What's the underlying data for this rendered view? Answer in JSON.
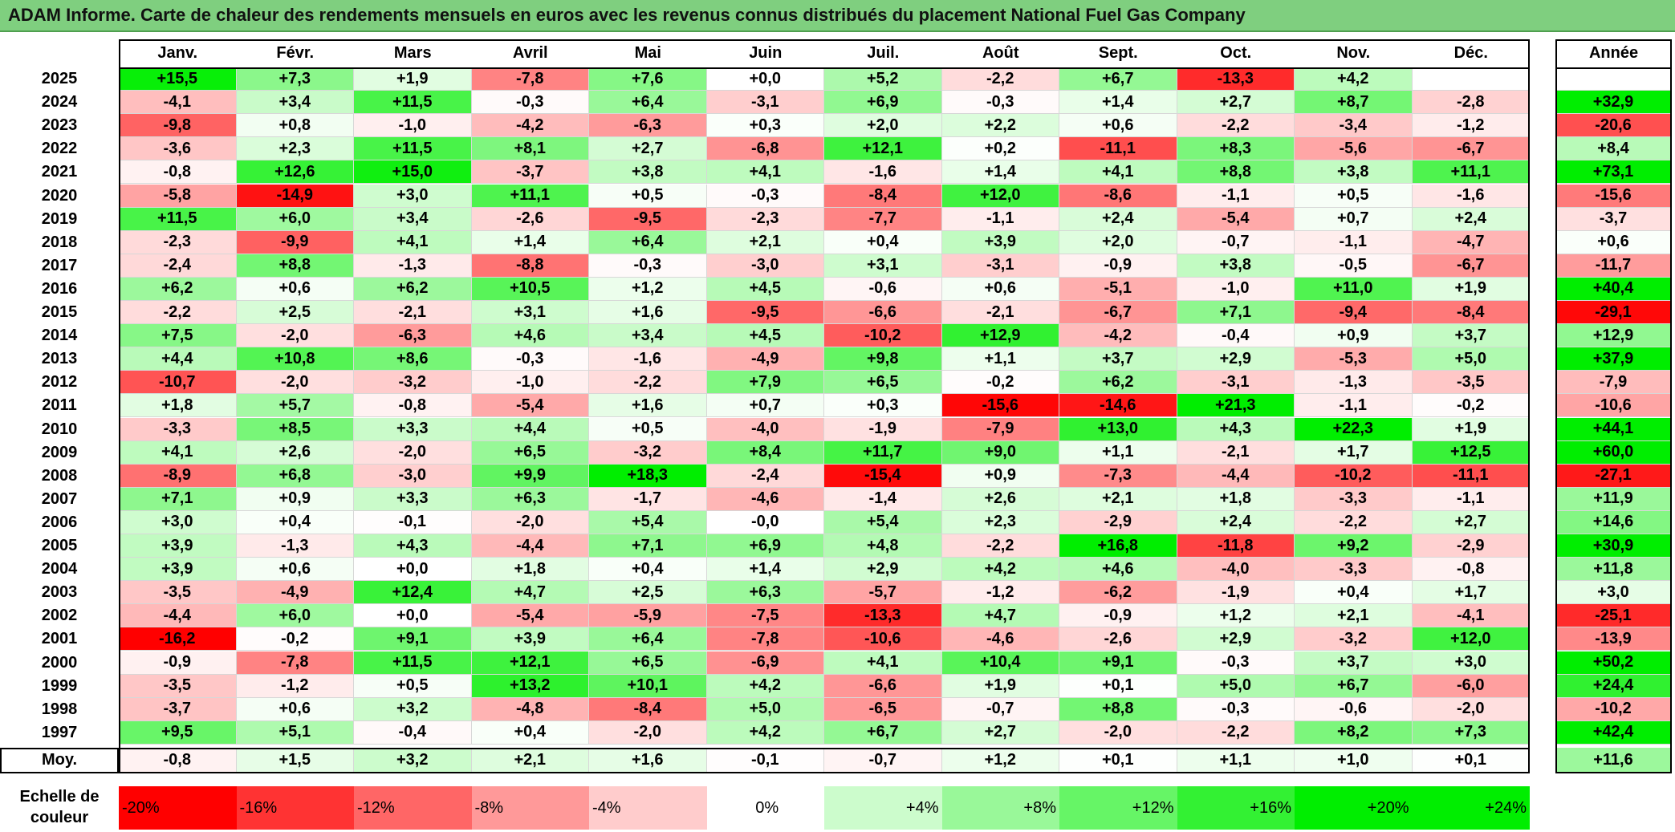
{
  "title": "ADAM Informe. Carte de chaleur des rendements mensuels en euros avec les revenus connus distribués du placement National Fuel Gas Company",
  "chart_data": {
    "type": "heatmap",
    "months": [
      "Janv.",
      "Févr.",
      "Mars",
      "Avril",
      "Mai",
      "Juin",
      "Juil.",
      "Août",
      "Sept.",
      "Oct.",
      "Nov.",
      "Déc."
    ],
    "year_header": "Année",
    "average_label": "Moy.",
    "rows": [
      {
        "year": "2025",
        "values": [
          "+15,5",
          "+7,3",
          "+1,9",
          "-7,8",
          "+7,6",
          "+0,0",
          "+5,2",
          "-2,2",
          "+6,7",
          "-13,3",
          "+4,2",
          ""
        ],
        "annual": ""
      },
      {
        "year": "2024",
        "values": [
          "-4,1",
          "+3,4",
          "+11,5",
          "-0,3",
          "+6,4",
          "-3,1",
          "+6,9",
          "-0,3",
          "+1,4",
          "+2,7",
          "+8,7",
          "-2,8"
        ],
        "annual": "+32,9"
      },
      {
        "year": "2023",
        "values": [
          "-9,8",
          "+0,8",
          "-1,0",
          "-4,2",
          "-6,3",
          "+0,3",
          "+2,0",
          "+2,2",
          "+0,6",
          "-2,2",
          "-3,4",
          "-1,2"
        ],
        "annual": "-20,6"
      },
      {
        "year": "2022",
        "values": [
          "-3,6",
          "+2,3",
          "+11,5",
          "+8,1",
          "+2,7",
          "-6,8",
          "+12,1",
          "+0,2",
          "-11,1",
          "+8,3",
          "-5,6",
          "-6,7"
        ],
        "annual": "+8,4"
      },
      {
        "year": "2021",
        "values": [
          "-0,8",
          "+12,6",
          "+15,0",
          "-3,7",
          "+3,8",
          "+4,1",
          "-1,6",
          "+1,4",
          "+4,1",
          "+8,8",
          "+3,8",
          "+11,1"
        ],
        "annual": "+73,1"
      },
      {
        "year": "2020",
        "values": [
          "-5,8",
          "-14,9",
          "+3,0",
          "+11,1",
          "+0,5",
          "-0,3",
          "-8,4",
          "+12,0",
          "-8,6",
          "-1,1",
          "+0,5",
          "-1,6"
        ],
        "annual": "-15,6"
      },
      {
        "year": "2019",
        "values": [
          "+11,5",
          "+6,0",
          "+3,4",
          "-2,6",
          "-9,5",
          "-2,3",
          "-7,7",
          "-1,1",
          "+2,4",
          "-5,4",
          "+0,7",
          "+2,4"
        ],
        "annual": "-3,7"
      },
      {
        "year": "2018",
        "values": [
          "-2,3",
          "-9,9",
          "+4,1",
          "+1,4",
          "+6,4",
          "+2,1",
          "+0,4",
          "+3,9",
          "+2,0",
          "-0,7",
          "-1,1",
          "-4,7"
        ],
        "annual": "+0,6"
      },
      {
        "year": "2017",
        "values": [
          "-2,4",
          "+8,8",
          "-1,3",
          "-8,8",
          "-0,3",
          "-3,0",
          "+3,1",
          "-3,1",
          "-0,9",
          "+3,8",
          "-0,5",
          "-6,7"
        ],
        "annual": "-11,7"
      },
      {
        "year": "2016",
        "values": [
          "+6,2",
          "+0,6",
          "+6,2",
          "+10,5",
          "+1,2",
          "+4,5",
          "-0,6",
          "+0,6",
          "-5,1",
          "-1,0",
          "+11,0",
          "+1,9"
        ],
        "annual": "+40,4"
      },
      {
        "year": "2015",
        "values": [
          "-2,2",
          "+2,5",
          "-2,1",
          "+3,1",
          "+1,6",
          "-9,5",
          "-6,6",
          "-2,1",
          "-6,7",
          "+7,1",
          "-9,4",
          "-8,4"
        ],
        "annual": "-29,1"
      },
      {
        "year": "2014",
        "values": [
          "+7,5",
          "-2,0",
          "-6,3",
          "+4,6",
          "+3,4",
          "+4,5",
          "-10,2",
          "+12,9",
          "-4,2",
          "-0,4",
          "+0,9",
          "+3,7"
        ],
        "annual": "+12,9"
      },
      {
        "year": "2013",
        "values": [
          "+4,4",
          "+10,8",
          "+8,6",
          "-0,3",
          "-1,6",
          "-4,9",
          "+9,8",
          "+1,1",
          "+3,7",
          "+2,9",
          "-5,3",
          "+5,0"
        ],
        "annual": "+37,9"
      },
      {
        "year": "2012",
        "values": [
          "-10,7",
          "-2,0",
          "-3,2",
          "-1,0",
          "-2,2",
          "+7,9",
          "+6,5",
          "-0,2",
          "+6,2",
          "-3,1",
          "-1,3",
          "-3,5"
        ],
        "annual": "-7,9"
      },
      {
        "year": "2011",
        "values": [
          "+1,8",
          "+5,7",
          "-0,8",
          "-5,4",
          "+1,6",
          "+0,7",
          "+0,3",
          "-15,6",
          "-14,6",
          "+21,3",
          "-1,1",
          "-0,2"
        ],
        "annual": "-10,6"
      },
      {
        "year": "2010",
        "values": [
          "-3,3",
          "+8,5",
          "+3,3",
          "+4,4",
          "+0,5",
          "-4,0",
          "-1,9",
          "-7,9",
          "+13,0",
          "+4,3",
          "+22,3",
          "+1,9"
        ],
        "annual": "+44,1"
      },
      {
        "year": "2009",
        "values": [
          "+4,1",
          "+2,6",
          "-2,0",
          "+6,5",
          "-3,2",
          "+8,4",
          "+11,7",
          "+9,0",
          "+1,1",
          "-2,1",
          "+1,7",
          "+12,5"
        ],
        "annual": "+60,0"
      },
      {
        "year": "2008",
        "values": [
          "-8,9",
          "+6,8",
          "-3,0",
          "+9,9",
          "+18,3",
          "-2,4",
          "-15,4",
          "+0,9",
          "-7,3",
          "-4,4",
          "-10,2",
          "-11,1"
        ],
        "annual": "-27,1"
      },
      {
        "year": "2007",
        "values": [
          "+7,1",
          "+0,9",
          "+3,3",
          "+6,3",
          "-1,7",
          "-4,6",
          "-1,4",
          "+2,6",
          "+2,1",
          "+1,8",
          "-3,3",
          "-1,1"
        ],
        "annual": "+11,9"
      },
      {
        "year": "2006",
        "values": [
          "+3,0",
          "+0,4",
          "-0,1",
          "-2,0",
          "+5,4",
          "-0,0",
          "+5,4",
          "+2,3",
          "-2,9",
          "+2,4",
          "-2,2",
          "+2,7"
        ],
        "annual": "+14,6"
      },
      {
        "year": "2005",
        "values": [
          "+3,9",
          "-1,3",
          "+4,3",
          "-4,4",
          "+7,1",
          "+6,9",
          "+4,8",
          "-2,2",
          "+16,8",
          "-11,8",
          "+9,2",
          "-2,9"
        ],
        "annual": "+30,9"
      },
      {
        "year": "2004",
        "values": [
          "+3,9",
          "+0,6",
          "+0,0",
          "+1,8",
          "+0,4",
          "+1,4",
          "+2,9",
          "+4,2",
          "+4,6",
          "-4,0",
          "-3,3",
          "-0,8"
        ],
        "annual": "+11,8"
      },
      {
        "year": "2003",
        "values": [
          "-3,5",
          "-4,9",
          "+12,4",
          "+4,7",
          "+2,5",
          "+6,3",
          "-5,7",
          "-1,2",
          "-6,2",
          "-1,9",
          "+0,4",
          "+1,7"
        ],
        "annual": "+3,0"
      },
      {
        "year": "2002",
        "values": [
          "-4,4",
          "+6,0",
          "+0,0",
          "-5,4",
          "-5,9",
          "-7,5",
          "-13,3",
          "+4,7",
          "-0,9",
          "+1,2",
          "+2,1",
          "-4,1"
        ],
        "annual": "-25,1"
      },
      {
        "year": "2001",
        "values": [
          "-16,2",
          "-0,2",
          "+9,1",
          "+3,9",
          "+6,4",
          "-7,8",
          "-10,6",
          "-4,6",
          "-2,6",
          "+2,9",
          "-3,2",
          "+12,0"
        ],
        "annual": "-13,9"
      },
      {
        "year": "2000",
        "values": [
          "-0,9",
          "-7,8",
          "+11,5",
          "+12,1",
          "+6,5",
          "-6,9",
          "+4,1",
          "+10,4",
          "+9,1",
          "-0,3",
          "+3,7",
          "+3,0"
        ],
        "annual": "+50,2"
      },
      {
        "year": "1999",
        "values": [
          "-3,5",
          "-1,2",
          "+0,5",
          "+13,2",
          "+10,1",
          "+4,2",
          "-6,6",
          "+1,9",
          "+0,1",
          "+5,0",
          "+6,7",
          "-6,0"
        ],
        "annual": "+24,4"
      },
      {
        "year": "1998",
        "values": [
          "-3,7",
          "+0,6",
          "+3,2",
          "-4,8",
          "-8,4",
          "+5,0",
          "-6,5",
          "-0,7",
          "+8,8",
          "-0,3",
          "-0,6",
          "-2,0"
        ],
        "annual": "-10,2"
      },
      {
        "year": "1997",
        "values": [
          "+9,5",
          "+5,1",
          "-0,4",
          "+0,4",
          "-2,0",
          "+4,2",
          "+6,7",
          "+2,7",
          "-2,0",
          "-2,2",
          "+8,2",
          "+7,3"
        ],
        "annual": "+42,4"
      }
    ],
    "averages": [
      "-0,8",
      "+1,5",
      "+3,2",
      "+2,1",
      "+1,6",
      "-0,1",
      "-0,7",
      "+1,2",
      "+0,1",
      "+1,1",
      "+1,0",
      "+0,1"
    ],
    "average_annual": "+11,6",
    "scale_label": "Echelle de couleur",
    "scale": [
      "-20%",
      "-16%",
      "-12%",
      "-8%",
      "-4%",
      "0%",
      "+4%",
      "+8%",
      "+12%",
      "+16%",
      "+20%",
      "+24%"
    ],
    "colors": {
      "negative": "#ff0000",
      "neutral": "#ffffff",
      "positive": "#00ee00"
    }
  }
}
